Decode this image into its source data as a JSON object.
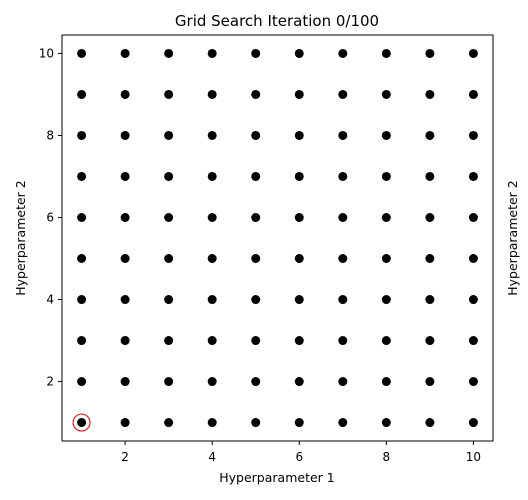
{
  "chart_data": {
    "type": "scatter",
    "title": "Grid Search Iteration 0/100",
    "xlabel": "Hyperparameter 1",
    "ylabel": "Hyperparameter 2",
    "ylabel_right": "Hyperparameter 2",
    "xlim": [
      0.55,
      10.45
    ],
    "ylim": [
      0.55,
      10.45
    ],
    "x_ticks": [
      2,
      4,
      6,
      8,
      10
    ],
    "y_ticks": [
      2,
      4,
      6,
      8,
      10
    ],
    "grid": false,
    "x_values": [
      1,
      2,
      3,
      4,
      5,
      6,
      7,
      8,
      9,
      10
    ],
    "y_values": [
      1,
      2,
      3,
      4,
      5,
      6,
      7,
      8,
      9,
      10
    ],
    "highlight": {
      "x": 1,
      "y": 1
    },
    "point_color": "#000000",
    "highlight_color": "#d62728"
  }
}
